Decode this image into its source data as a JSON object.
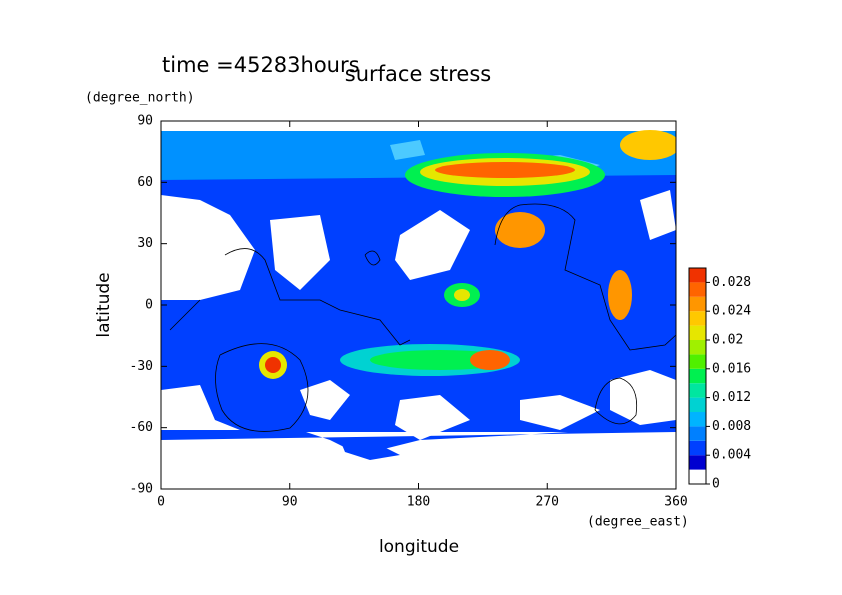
{
  "chart_data": {
    "type": "contour",
    "title": "surface stress",
    "subtitle": "time =45283hours",
    "x_label": "longitude",
    "x_units": "(degree_east)",
    "y_label": "latitude",
    "y_units": "(degree_north)",
    "xlim": [
      0,
      360
    ],
    "ylim": [
      -90,
      90
    ],
    "xticks": [
      0,
      90,
      180,
      270,
      360
    ],
    "yticks": [
      -90,
      -60,
      -30,
      0,
      30,
      60,
      90
    ],
    "colorbar": {
      "levels": [
        0,
        0.002,
        0.004,
        0.006,
        0.008,
        0.01,
        0.012,
        0.014,
        0.016,
        0.018,
        0.02,
        0.022,
        0.024,
        0.026,
        0.028,
        0.03
      ],
      "colors": [
        "#ffffff",
        "#0000d0",
        "#0040ff",
        "#0080ff",
        "#00b4ff",
        "#00d2d2",
        "#00e6a0",
        "#00f050",
        "#50f000",
        "#a0f000",
        "#e6e600",
        "#ffc800",
        "#ff9600",
        "#ff6400",
        "#f03200"
      ],
      "ticks": [
        0,
        0.004,
        0.008,
        0.012,
        0.016,
        0.02,
        0.024,
        0.028
      ]
    }
  }
}
